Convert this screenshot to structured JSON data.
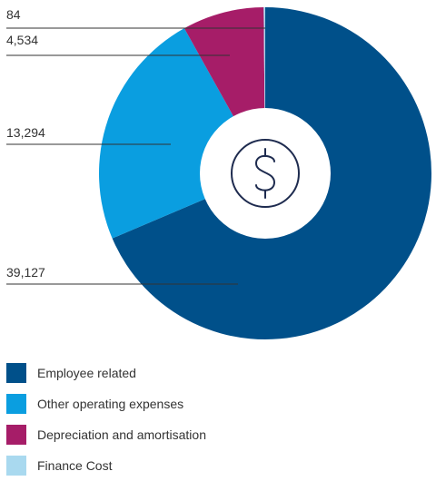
{
  "chart_data": {
    "type": "pie",
    "categories": [
      "Employee related",
      "Other operating expenses",
      "Depreciation and amortisation",
      "Finance Cost"
    ],
    "values": [
      39127,
      13294,
      4534,
      84
    ],
    "data_labels": [
      "39,127",
      "13,294",
      "4,534",
      "84"
    ],
    "colors": [
      "#00508a",
      "#0a9ee0",
      "#a61d68",
      "#a9d9ef"
    ],
    "center_icon": "dollar-icon",
    "legend_position": "bottom-left"
  },
  "legend": {
    "items": [
      {
        "label": "Employee related",
        "color": "#00508a"
      },
      {
        "label": "Other operating expenses",
        "color": "#0a9ee0"
      },
      {
        "label": "Depreciation and amortisation",
        "color": "#a61d68"
      },
      {
        "label": "Finance Cost",
        "color": "#a9d9ef"
      }
    ]
  }
}
